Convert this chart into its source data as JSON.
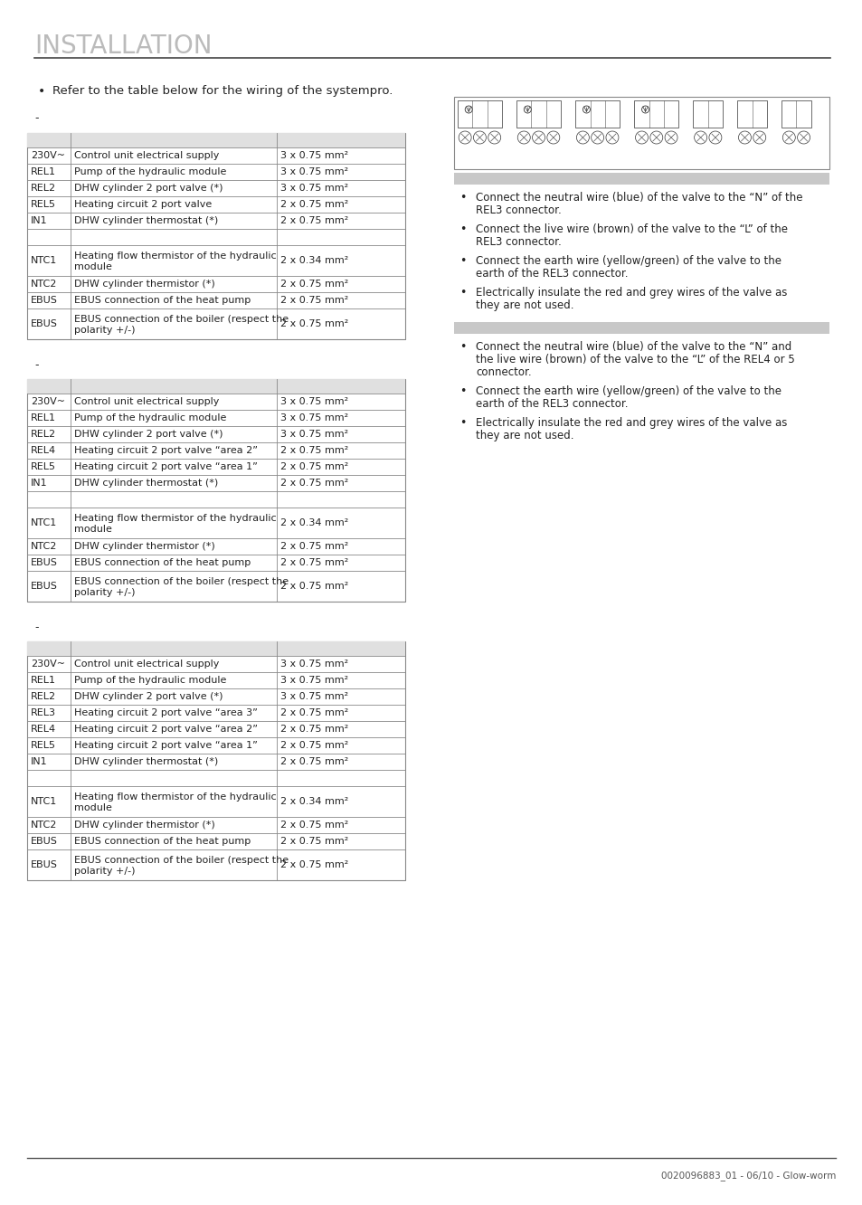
{
  "title": "INSTALLATION",
  "page_bg": "#ffffff",
  "title_color": "#bbbbbb",
  "title_fontsize": 20,
  "intro_bullet": "Refer to the table below for the wiring of the systempro.",
  "table1": {
    "rows_top": [
      [
        "230V~",
        "Control unit electrical supply",
        "3 x 0.75 mm²"
      ],
      [
        "REL1",
        "Pump of the hydraulic module",
        "3 x 0.75 mm²"
      ],
      [
        "REL2",
        "DHW cylinder 2 port valve (*)",
        "3 x 0.75 mm²"
      ],
      [
        "REL5",
        "Heating circuit 2 port valve",
        "2 x 0.75 mm²"
      ],
      [
        "IN1",
        "DHW cylinder thermostat (*)",
        "2 x 0.75 mm²"
      ]
    ],
    "rows_bottom": [
      [
        "NTC1",
        "Heating flow thermistor of the hydraulic\nmodule",
        "2 x 0.34 mm²"
      ],
      [
        "NTC2",
        "DHW cylinder thermistor (*)",
        "2 x 0.75 mm²"
      ],
      [
        "EBUS",
        "EBUS connection of the heat pump",
        "2 x 0.75 mm²"
      ],
      [
        "EBUS",
        "EBUS connection of the boiler (respect the\npolarity +/-)",
        "2 x 0.75 mm²"
      ]
    ]
  },
  "table2": {
    "rows_top": [
      [
        "230V~",
        "Control unit electrical supply",
        "3 x 0.75 mm²"
      ],
      [
        "REL1",
        "Pump of the hydraulic module",
        "3 x 0.75 mm²"
      ],
      [
        "REL2",
        "DHW cylinder 2 port valve (*)",
        "3 x 0.75 mm²"
      ],
      [
        "REL4",
        "Heating circuit 2 port valve “area 2”",
        "2 x 0.75 mm²"
      ],
      [
        "REL5",
        "Heating circuit 2 port valve “area 1”",
        "2 x 0.75 mm²"
      ],
      [
        "IN1",
        "DHW cylinder thermostat (*)",
        "2 x 0.75 mm²"
      ]
    ],
    "rows_bottom": [
      [
        "NTC1",
        "Heating flow thermistor of the hydraulic\nmodule",
        "2 x 0.34 mm²"
      ],
      [
        "NTC2",
        "DHW cylinder thermistor (*)",
        "2 x 0.75 mm²"
      ],
      [
        "EBUS",
        "EBUS connection of the heat pump",
        "2 x 0.75 mm²"
      ],
      [
        "EBUS",
        "EBUS connection of the boiler (respect the\npolarity +/-)",
        "2 x 0.75 mm²"
      ]
    ]
  },
  "table3": {
    "rows_top": [
      [
        "230V~",
        "Control unit electrical supply",
        "3 x 0.75 mm²"
      ],
      [
        "REL1",
        "Pump of the hydraulic module",
        "3 x 0.75 mm²"
      ],
      [
        "REL2",
        "DHW cylinder 2 port valve (*)",
        "3 x 0.75 mm²"
      ],
      [
        "REL3",
        "Heating circuit 2 port valve “area 3”",
        "2 x 0.75 mm²"
      ],
      [
        "REL4",
        "Heating circuit 2 port valve “area 2”",
        "2 x 0.75 mm²"
      ],
      [
        "REL5",
        "Heating circuit 2 port valve “area 1”",
        "2 x 0.75 mm²"
      ],
      [
        "IN1",
        "DHW cylinder thermostat (*)",
        "2 x 0.75 mm²"
      ]
    ],
    "rows_bottom": [
      [
        "NTC1",
        "Heating flow thermistor of the hydraulic\nmodule",
        "2 x 0.34 mm²"
      ],
      [
        "NTC2",
        "DHW cylinder thermistor (*)",
        "2 x 0.75 mm²"
      ],
      [
        "EBUS",
        "EBUS connection of the heat pump",
        "2 x 0.75 mm²"
      ],
      [
        "EBUS",
        "EBUS connection of the boiler (respect the\npolarity +/-)",
        "2 x 0.75 mm²"
      ]
    ]
  },
  "bullets_section1": [
    [
      "Connect the neutral wire (blue) of the valve to the “N” of the",
      "REL3 connector."
    ],
    [
      "Connect the live wire (brown) of the valve to the “L” of the",
      "REL3 connector."
    ],
    [
      "Connect the earth wire (yellow/green) of the valve to the",
      "earth of the REL3 connector."
    ],
    [
      "Electrically insulate the red and grey wires of the valve as",
      "they are not used."
    ]
  ],
  "bullets_section2": [
    [
      "Connect the neutral wire (blue) of the valve to the “N” and",
      "the live wire (brown) of the valve to the “L” of the REL4 or 5",
      "connector."
    ],
    [
      "Connect the earth wire (yellow/green) of the valve to the",
      "earth of the REL3 connector."
    ],
    [
      "Electrically insulate the red and grey wires of the valve as",
      "they are not used."
    ]
  ],
  "footer_text": "0020096883_01 - 06/10 - Glow-worm",
  "border_color": "#888888",
  "header_bg": "#e0e0e0",
  "text_color": "#222222",
  "font_size": 8.0,
  "grey_bar_color": "#c8c8c8"
}
